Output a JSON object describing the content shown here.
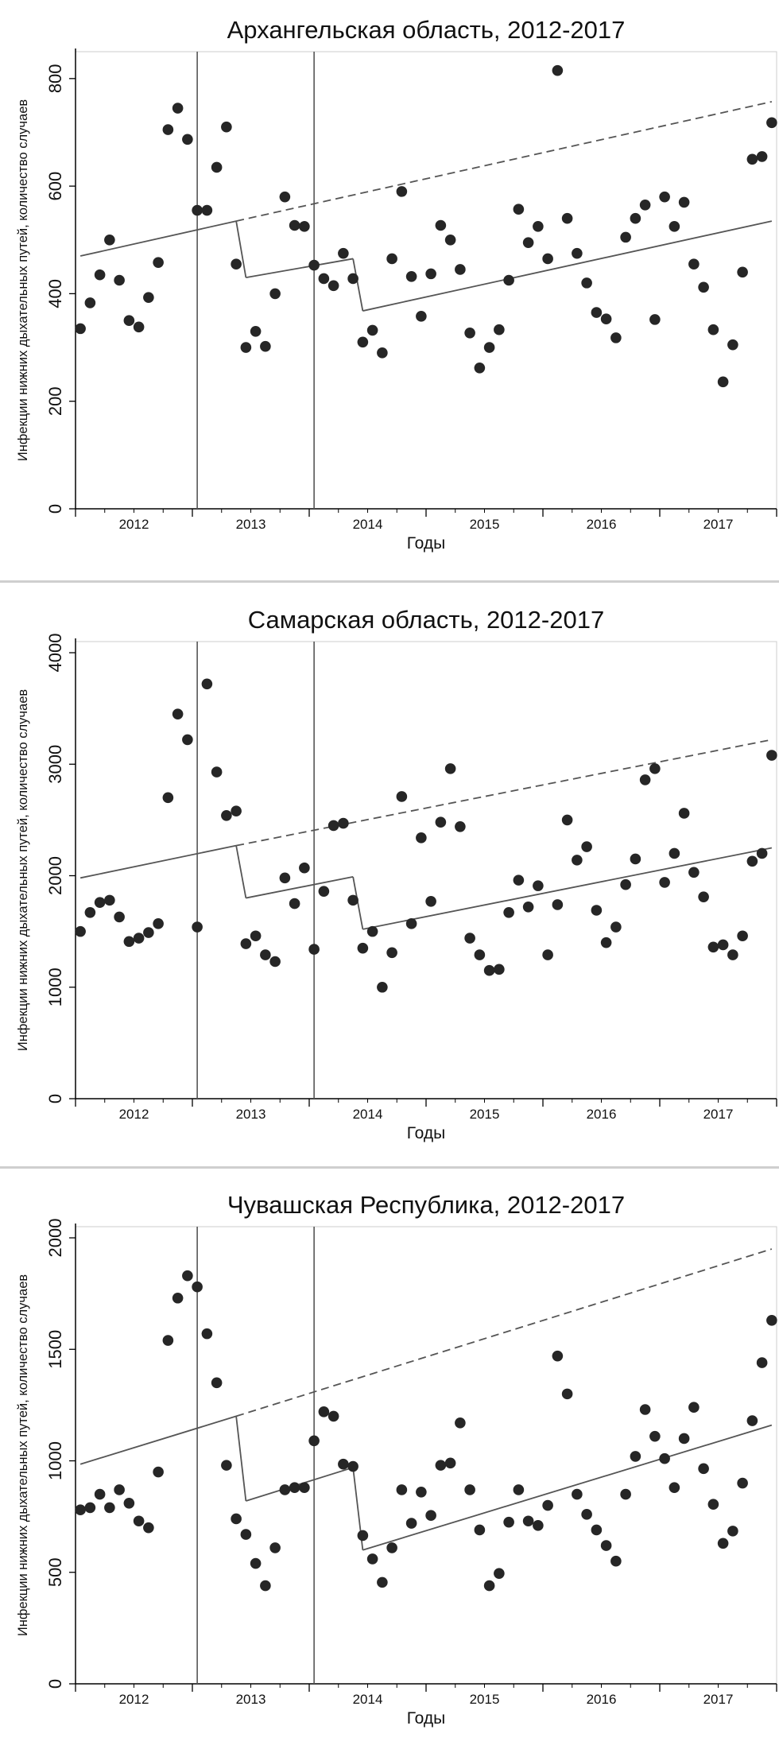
{
  "charts": [
    {
      "type": "scatter",
      "title": "Архангельская область, 2012-2017",
      "xlabel": "Годы",
      "ylabel": "Инфекции нижних дыхательных путей, количество случаев",
      "ylim": [
        0,
        850
      ],
      "yticks": [
        0,
        200,
        400,
        600,
        800
      ],
      "xlim": [
        "2012-01",
        "2018-01"
      ],
      "xticklabels": [
        "2012",
        "2013",
        "2014",
        "2015",
        "2016",
        "2017"
      ],
      "interventions": [
        "2013-01",
        "2014-01"
      ],
      "points": [
        [
          1,
          335
        ],
        [
          2,
          383
        ],
        [
          3,
          435
        ],
        [
          4,
          500
        ],
        [
          5,
          425
        ],
        [
          6,
          350
        ],
        [
          7,
          338
        ],
        [
          8,
          393
        ],
        [
          9,
          458
        ],
        [
          10,
          705
        ],
        [
          11,
          745
        ],
        [
          12,
          687
        ],
        [
          13,
          555
        ],
        [
          14,
          555
        ],
        [
          15,
          635
        ],
        [
          16,
          710
        ],
        [
          17,
          455
        ],
        [
          18,
          300
        ],
        [
          19,
          330
        ],
        [
          20,
          302
        ],
        [
          21,
          400
        ],
        [
          22,
          580
        ],
        [
          23,
          527
        ],
        [
          24,
          525
        ],
        [
          25,
          453
        ],
        [
          26,
          428
        ],
        [
          27,
          415
        ],
        [
          28,
          475
        ],
        [
          29,
          428
        ],
        [
          30,
          310
        ],
        [
          31,
          332
        ],
        [
          32,
          290
        ],
        [
          33,
          465
        ],
        [
          34,
          590
        ],
        [
          35,
          432
        ],
        [
          36,
          358
        ],
        [
          37,
          437
        ],
        [
          38,
          527
        ],
        [
          39,
          500
        ],
        [
          40,
          445
        ],
        [
          41,
          327
        ],
        [
          42,
          262
        ],
        [
          43,
          300
        ],
        [
          44,
          333
        ],
        [
          45,
          425
        ],
        [
          46,
          557
        ],
        [
          47,
          495
        ],
        [
          48,
          525
        ],
        [
          49,
          465
        ],
        [
          50,
          815
        ],
        [
          51,
          540
        ],
        [
          52,
          475
        ],
        [
          53,
          420
        ],
        [
          54,
          365
        ],
        [
          55,
          353
        ],
        [
          56,
          318
        ],
        [
          57,
          505
        ],
        [
          58,
          540
        ],
        [
          59,
          565
        ],
        [
          60,
          352
        ],
        [
          61,
          580
        ],
        [
          62,
          525
        ],
        [
          63,
          570
        ],
        [
          64,
          455
        ],
        [
          65,
          412
        ],
        [
          66,
          333
        ],
        [
          67,
          236
        ],
        [
          68,
          305
        ],
        [
          69,
          440
        ],
        [
          70,
          650
        ],
        [
          71,
          655
        ],
        [
          72,
          718
        ]
      ],
      "segments": [
        {
          "style": "solid",
          "from": [
            1,
            470
          ],
          "to": [
            17,
            535
          ]
        },
        {
          "style": "solid",
          "from": [
            17,
            535
          ],
          "to": [
            18,
            430
          ]
        },
        {
          "style": "solid",
          "from": [
            18,
            430
          ],
          "to": [
            29,
            465
          ]
        },
        {
          "style": "solid",
          "from": [
            29,
            465
          ],
          "to": [
            30,
            368
          ]
        },
        {
          "style": "solid",
          "from": [
            30,
            368
          ],
          "to": [
            72,
            535
          ]
        },
        {
          "style": "dashed",
          "from": [
            17,
            535
          ],
          "to": [
            72,
            757
          ]
        }
      ]
    },
    {
      "type": "scatter",
      "title": "Самарская область, 2012-2017",
      "xlabel": "Годы",
      "ylabel": "Инфекции нижних дыхательных путей, количество случаев",
      "ylim": [
        0,
        4100
      ],
      "yticks": [
        0,
        1000,
        2000,
        3000,
        4000
      ],
      "xlim": [
        "2012-01",
        "2018-01"
      ],
      "xticklabels": [
        "2012",
        "2013",
        "2014",
        "2015",
        "2016",
        "2017"
      ],
      "interventions": [
        "2013-01",
        "2014-01"
      ],
      "points": [
        [
          1,
          1500
        ],
        [
          2,
          1670
        ],
        [
          3,
          1760
        ],
        [
          4,
          1780
        ],
        [
          5,
          1630
        ],
        [
          6,
          1410
        ],
        [
          7,
          1440
        ],
        [
          8,
          1490
        ],
        [
          9,
          1570
        ],
        [
          10,
          2700
        ],
        [
          11,
          3450
        ],
        [
          12,
          3220
        ],
        [
          13,
          1540
        ],
        [
          14,
          3720
        ],
        [
          15,
          2930
        ],
        [
          16,
          2540
        ],
        [
          17,
          2580
        ],
        [
          18,
          1390
        ],
        [
          19,
          1460
        ],
        [
          20,
          1290
        ],
        [
          21,
          1230
        ],
        [
          22,
          1980
        ],
        [
          23,
          1750
        ],
        [
          24,
          2070
        ],
        [
          25,
          1340
        ],
        [
          26,
          1860
        ],
        [
          27,
          2450
        ],
        [
          28,
          2470
        ],
        [
          29,
          1780
        ],
        [
          30,
          1350
        ],
        [
          31,
          1500
        ],
        [
          32,
          1000
        ],
        [
          33,
          1310
        ],
        [
          34,
          2710
        ],
        [
          35,
          1570
        ],
        [
          36,
          2340
        ],
        [
          37,
          1770
        ],
        [
          38,
          2480
        ],
        [
          39,
          2960
        ],
        [
          40,
          2440
        ],
        [
          41,
          1440
        ],
        [
          42,
          1290
        ],
        [
          43,
          1150
        ],
        [
          44,
          1160
        ],
        [
          45,
          1670
        ],
        [
          46,
          1960
        ],
        [
          47,
          1720
        ],
        [
          48,
          1910
        ],
        [
          49,
          1290
        ],
        [
          50,
          1740
        ],
        [
          51,
          2500
        ],
        [
          52,
          2140
        ],
        [
          53,
          2260
        ],
        [
          54,
          1690
        ],
        [
          55,
          1400
        ],
        [
          56,
          1540
        ],
        [
          57,
          1920
        ],
        [
          58,
          2150
        ],
        [
          59,
          2860
        ],
        [
          60,
          2960
        ],
        [
          61,
          1940
        ],
        [
          62,
          2200
        ],
        [
          63,
          2560
        ],
        [
          64,
          2030
        ],
        [
          65,
          1810
        ],
        [
          66,
          1360
        ],
        [
          67,
          1380
        ],
        [
          68,
          1290
        ],
        [
          69,
          1460
        ],
        [
          70,
          2130
        ],
        [
          71,
          2200
        ],
        [
          72,
          3080
        ]
      ],
      "segments": [
        {
          "style": "solid",
          "from": [
            1,
            1980
          ],
          "to": [
            17,
            2270
          ]
        },
        {
          "style": "solid",
          "from": [
            17,
            2270
          ],
          "to": [
            18,
            1800
          ]
        },
        {
          "style": "solid",
          "from": [
            18,
            1800
          ],
          "to": [
            29,
            1990
          ]
        },
        {
          "style": "solid",
          "from": [
            29,
            1990
          ],
          "to": [
            30,
            1520
          ]
        },
        {
          "style": "solid",
          "from": [
            30,
            1520
          ],
          "to": [
            72,
            2250
          ]
        },
        {
          "style": "dashed",
          "from": [
            17,
            2270
          ],
          "to": [
            72,
            3220
          ]
        }
      ]
    },
    {
      "type": "scatter",
      "title": "Чувашская Республика, 2012-2017",
      "xlabel": "Годы",
      "ylabel": "Инфекции нижних дыхательных путей, количество случаев",
      "ylim": [
        0,
        2050
      ],
      "yticks": [
        0,
        500,
        1000,
        1500,
        2000
      ],
      "xlim": [
        "2012-01",
        "2018-01"
      ],
      "xticklabels": [
        "2012",
        "2013",
        "2014",
        "2015",
        "2016",
        "2017"
      ],
      "interventions": [
        "2013-01",
        "2014-01"
      ],
      "points": [
        [
          1,
          780
        ],
        [
          2,
          790
        ],
        [
          3,
          850
        ],
        [
          4,
          790
        ],
        [
          5,
          870
        ],
        [
          6,
          810
        ],
        [
          7,
          730
        ],
        [
          8,
          700
        ],
        [
          9,
          950
        ],
        [
          10,
          1540
        ],
        [
          11,
          1730
        ],
        [
          12,
          1830
        ],
        [
          13,
          1780
        ],
        [
          14,
          1570
        ],
        [
          15,
          1350
        ],
        [
          16,
          980
        ],
        [
          17,
          740
        ],
        [
          18,
          670
        ],
        [
          19,
          540
        ],
        [
          20,
          440
        ],
        [
          21,
          610
        ],
        [
          22,
          870
        ],
        [
          23,
          880
        ],
        [
          24,
          880
        ],
        [
          25,
          1090
        ],
        [
          26,
          1220
        ],
        [
          27,
          1200
        ],
        [
          28,
          985
        ],
        [
          29,
          975
        ],
        [
          30,
          665
        ],
        [
          31,
          560
        ],
        [
          32,
          455
        ],
        [
          33,
          610
        ],
        [
          34,
          870
        ],
        [
          35,
          720
        ],
        [
          36,
          860
        ],
        [
          37,
          755
        ],
        [
          38,
          980
        ],
        [
          39,
          990
        ],
        [
          40,
          1170
        ],
        [
          41,
          870
        ],
        [
          42,
          690
        ],
        [
          43,
          440
        ],
        [
          44,
          495
        ],
        [
          45,
          725
        ],
        [
          46,
          870
        ],
        [
          47,
          730
        ],
        [
          48,
          710
        ],
        [
          49,
          800
        ],
        [
          50,
          1470
        ],
        [
          51,
          1300
        ],
        [
          52,
          850
        ],
        [
          53,
          760
        ],
        [
          54,
          690
        ],
        [
          55,
          620
        ],
        [
          56,
          550
        ],
        [
          57,
          850
        ],
        [
          58,
          1020
        ],
        [
          59,
          1230
        ],
        [
          60,
          1110
        ],
        [
          61,
          1010
        ],
        [
          62,
          880
        ],
        [
          63,
          1100
        ],
        [
          64,
          1240
        ],
        [
          65,
          965
        ],
        [
          66,
          805
        ],
        [
          67,
          630
        ],
        [
          68,
          685
        ],
        [
          69,
          900
        ],
        [
          70,
          1180
        ],
        [
          71,
          1440
        ],
        [
          72,
          1630
        ]
      ],
      "segments": [
        {
          "style": "solid",
          "from": [
            1,
            985
          ],
          "to": [
            17,
            1200
          ]
        },
        {
          "style": "solid",
          "from": [
            17,
            1200
          ],
          "to": [
            18,
            820
          ]
        },
        {
          "style": "solid",
          "from": [
            18,
            820
          ],
          "to": [
            29,
            970
          ]
        },
        {
          "style": "solid",
          "from": [
            29,
            970
          ],
          "to": [
            30,
            600
          ]
        },
        {
          "style": "solid",
          "from": [
            30,
            600
          ],
          "to": [
            72,
            1160
          ]
        },
        {
          "style": "dashed",
          "from": [
            17,
            1200
          ],
          "to": [
            72,
            1950
          ]
        }
      ]
    }
  ]
}
